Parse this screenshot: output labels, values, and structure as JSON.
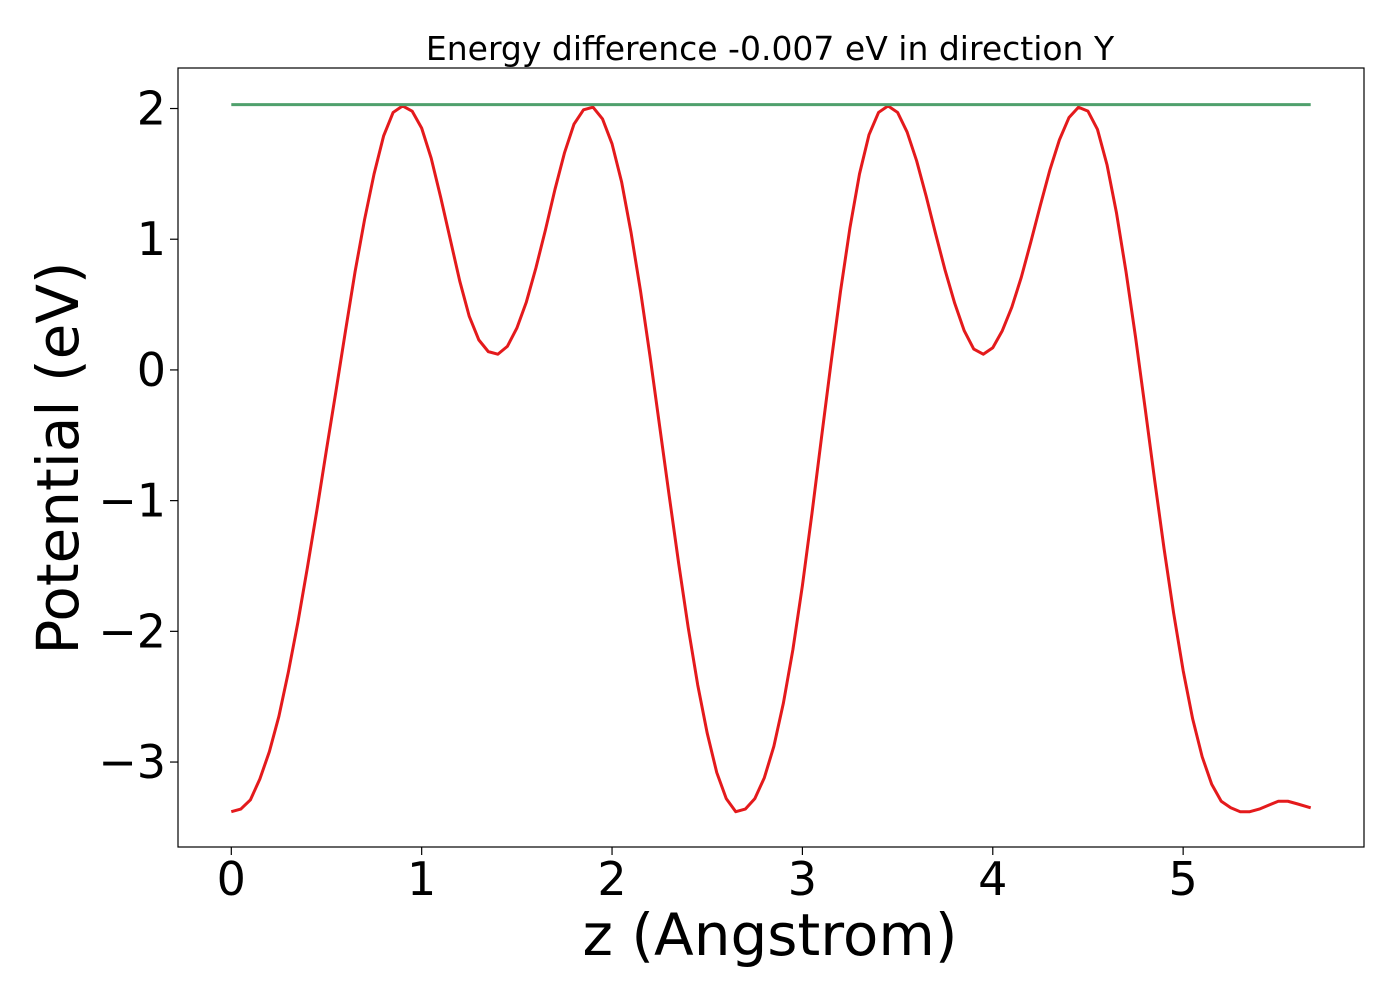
{
  "chart_data": {
    "type": "line",
    "title": "Energy difference -0.007 eV in direction Y",
    "xlabel": "z (Angstrom)",
    "ylabel": "Potential (eV)",
    "xlim": [
      -0.28,
      5.95
    ],
    "ylim": [
      -3.65,
      2.31
    ],
    "x_ticks": [
      0,
      1,
      2,
      3,
      4,
      5
    ],
    "x_tick_labels": [
      "0",
      "1",
      "2",
      "3",
      "4",
      "5"
    ],
    "y_ticks": [
      2,
      1,
      0,
      -1,
      -2,
      -3
    ],
    "y_tick_labels": [
      "2",
      "1",
      "0",
      "−1",
      "−2",
      "−3"
    ],
    "grid": false,
    "series": [
      {
        "color": "#e41a1c",
        "x": [
          0.0,
          0.05,
          0.1,
          0.15,
          0.2,
          0.25,
          0.3,
          0.35,
          0.4,
          0.45,
          0.5,
          0.55,
          0.6,
          0.65,
          0.7,
          0.75,
          0.8,
          0.85,
          0.9,
          0.95,
          1.0,
          1.05,
          1.1,
          1.15,
          1.2,
          1.25,
          1.3,
          1.35,
          1.4,
          1.45,
          1.5,
          1.55,
          1.6,
          1.65,
          1.7,
          1.75,
          1.8,
          1.85,
          1.9,
          1.95,
          2.0,
          2.05,
          2.1,
          2.15,
          2.2,
          2.25,
          2.3,
          2.35,
          2.4,
          2.45,
          2.5,
          2.55,
          2.6,
          2.65,
          2.7,
          2.75,
          2.8,
          2.85,
          2.9,
          2.95,
          3.0,
          3.05,
          3.1,
          3.15,
          3.2,
          3.25,
          3.3,
          3.35,
          3.4,
          3.45,
          3.5,
          3.55,
          3.6,
          3.65,
          3.7,
          3.75,
          3.8,
          3.85,
          3.9,
          3.95,
          4.0,
          4.05,
          4.1,
          4.15,
          4.2,
          4.25,
          4.3,
          4.35,
          4.4,
          4.45,
          4.5,
          4.55,
          4.6,
          4.65,
          4.7,
          4.75,
          4.8,
          4.85,
          4.9,
          4.95,
          5.0,
          5.05,
          5.1,
          5.15,
          5.2,
          5.25,
          5.3,
          5.35,
          5.4,
          5.45,
          5.5,
          5.55,
          5.6,
          5.67
        ],
        "values": [
          -3.38,
          -3.36,
          -3.29,
          -3.13,
          -2.92,
          -2.65,
          -2.31,
          -1.93,
          -1.51,
          -1.07,
          -0.61,
          -0.16,
          0.3,
          0.75,
          1.15,
          1.5,
          1.79,
          1.97,
          2.02,
          1.98,
          1.85,
          1.62,
          1.32,
          1.0,
          0.68,
          0.41,
          0.23,
          0.14,
          0.12,
          0.18,
          0.32,
          0.52,
          0.78,
          1.07,
          1.38,
          1.66,
          1.88,
          1.99,
          2.01,
          1.92,
          1.73,
          1.44,
          1.05,
          0.6,
          0.1,
          -0.43,
          -0.96,
          -1.48,
          -1.97,
          -2.41,
          -2.78,
          -3.08,
          -3.28,
          -3.38,
          -3.36,
          -3.28,
          -3.12,
          -2.88,
          -2.55,
          -2.14,
          -1.65,
          -1.1,
          -0.52,
          0.05,
          0.6,
          1.09,
          1.5,
          1.8,
          1.97,
          2.02,
          1.97,
          1.82,
          1.6,
          1.33,
          1.04,
          0.76,
          0.51,
          0.3,
          0.16,
          0.12,
          0.17,
          0.3,
          0.48,
          0.71,
          0.98,
          1.26,
          1.53,
          1.76,
          1.93,
          2.01,
          1.98,
          1.84,
          1.57,
          1.2,
          0.75,
          0.25,
          -0.29,
          -0.84,
          -1.37,
          -1.86,
          -2.3,
          -2.67,
          -2.96,
          -3.17,
          -3.3,
          -3.35,
          -3.38,
          -3.38,
          -3.36,
          -3.33,
          -3.3,
          -3.3,
          -3.32,
          -3.35
        ]
      },
      {
        "color": "#4fa06c",
        "x": [
          0.0,
          5.67
        ],
        "values": [
          2.03,
          2.03
        ]
      }
    ]
  }
}
